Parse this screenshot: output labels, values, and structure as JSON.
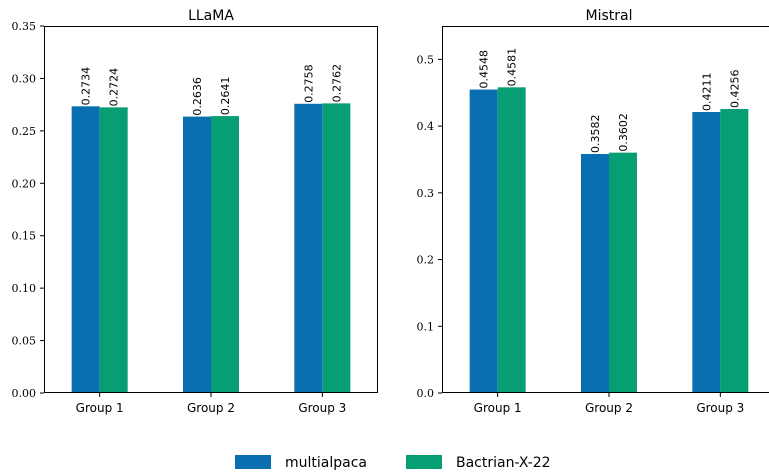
{
  "legend": [
    {
      "name": "multialpaca",
      "color": "#0a6fb0"
    },
    {
      "name": "Bactrian-X-22",
      "color": "#089e74"
    }
  ],
  "chart_data": [
    {
      "type": "bar",
      "title": "LLaMA",
      "categories": [
        "Group 1",
        "Group 2",
        "Group 3"
      ],
      "series": [
        {
          "name": "multialpaca",
          "values": [
            0.2734,
            0.2636,
            0.2758
          ]
        },
        {
          "name": "Bactrian-X-22",
          "values": [
            0.2724,
            0.2641,
            0.2762
          ]
        }
      ],
      "value_labels": [
        [
          "0.2734",
          "0.2636",
          "0.2758"
        ],
        [
          "0.2724",
          "0.2641",
          "0.2762"
        ]
      ],
      "yticks": [
        "0.00",
        "0.05",
        "0.10",
        "0.15",
        "0.20",
        "0.25",
        "0.30",
        "0.35"
      ],
      "ylim": [
        0,
        0.35
      ],
      "xlabel": "",
      "ylabel": "",
      "grid": false,
      "legend_placement": "bottom-center"
    },
    {
      "type": "bar",
      "title": "Mistral",
      "categories": [
        "Group 1",
        "Group 2",
        "Group 3"
      ],
      "series": [
        {
          "name": "multialpaca",
          "values": [
            0.4548,
            0.3582,
            0.4211
          ]
        },
        {
          "name": "Bactrian-X-22",
          "values": [
            0.4581,
            0.3602,
            0.4256
          ]
        }
      ],
      "value_labels": [
        [
          "0.4548",
          "0.3582",
          "0.4211"
        ],
        [
          "0.4581",
          "0.3602",
          "0.4256"
        ]
      ],
      "yticks": [
        "0.0",
        "0.1",
        "0.2",
        "0.3",
        "0.4",
        "0.5"
      ],
      "ylim": [
        0,
        0.55
      ],
      "xlabel": "",
      "ylabel": "",
      "grid": false,
      "legend_placement": "bottom-center"
    }
  ]
}
